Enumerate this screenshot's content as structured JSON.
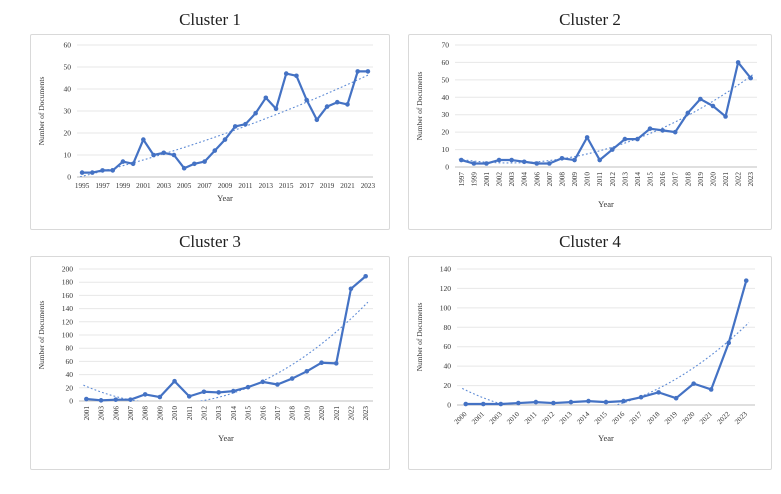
{
  "figure_title": "Cluster document trends figure",
  "colors": {
    "line": "#4472C4",
    "trend": "#5E8BD5",
    "grid": "#E7E7E7",
    "axis": "#BFBFBF",
    "text": "#333333",
    "panel_border": "#D9D9D9"
  },
  "chart_data": [
    {
      "type": "line",
      "title": "Cluster 1",
      "xlabel": "Year",
      "ylabel": "Number of Documents",
      "categories": [
        "1995",
        "1996",
        "1997",
        "1998",
        "1999",
        "2000",
        "2001",
        "2002",
        "2003",
        "2004",
        "2005",
        "2006",
        "2007",
        "2008",
        "2009",
        "2010",
        "2011",
        "2012",
        "2013",
        "2014",
        "2015",
        "2016",
        "2017",
        "2018",
        "2019",
        "2020",
        "2021",
        "2022",
        "2023"
      ],
      "values": [
        2,
        2,
        3,
        3,
        7,
        6,
        17,
        10,
        11,
        10,
        4,
        6,
        7,
        12,
        17,
        23,
        24,
        29,
        36,
        31,
        47,
        46,
        35,
        26,
        32,
        34,
        33,
        48,
        48
      ],
      "ylim": [
        0,
        60
      ],
      "ystep": 10,
      "x_tick_style": "horizontal",
      "x_tick_every": 2,
      "trend": "poly2",
      "grid": true,
      "legend": "none"
    },
    {
      "type": "line",
      "title": "Cluster 2",
      "xlabel": "Year",
      "ylabel": "Number of Documents",
      "categories": [
        "1997",
        "1999",
        "2001",
        "2002",
        "2003",
        "2004",
        "2006",
        "2007",
        "2008",
        "2009",
        "2010",
        "2011",
        "2012",
        "2013",
        "2014",
        "2015",
        "2016",
        "2017",
        "2018",
        "2019",
        "2020",
        "2021",
        "2022",
        "2023"
      ],
      "values": [
        4,
        2,
        2,
        4,
        4,
        3,
        2,
        2,
        5,
        4,
        17,
        4,
        10,
        16,
        16,
        22,
        21,
        20,
        31,
        39,
        35,
        29,
        60,
        51
      ],
      "ylim": [
        0,
        70
      ],
      "ystep": 10,
      "x_tick_style": "vertical",
      "x_tick_every": 1,
      "trend": "poly2",
      "grid": true,
      "legend": "none"
    },
    {
      "type": "line",
      "title": "Cluster 3",
      "xlabel": "Year",
      "ylabel": "Number of Documents",
      "categories": [
        "2001",
        "2003",
        "2006",
        "2007",
        "2008",
        "2009",
        "2010",
        "2011",
        "2012",
        "2013",
        "2014",
        "2015",
        "2016",
        "2017",
        "2018",
        "2019",
        "2020",
        "2021",
        "2022",
        "2023"
      ],
      "values": [
        3,
        1,
        2,
        2,
        10,
        6,
        30,
        7,
        14,
        13,
        15,
        21,
        29,
        25,
        34,
        45,
        58,
        57,
        170,
        189
      ],
      "ylim": [
        0,
        200
      ],
      "ystep": 20,
      "x_tick_style": "vertical",
      "x_tick_every": 1,
      "trend": "poly2",
      "grid": true,
      "legend": "none"
    },
    {
      "type": "line",
      "title": "Cluster 4",
      "xlabel": "Year",
      "ylabel": "Number of Documents",
      "categories": [
        "2000",
        "2001",
        "2003",
        "2010",
        "2011",
        "2012",
        "2013",
        "2014",
        "2015",
        "2016",
        "2017",
        "2018",
        "2019",
        "2020",
        "2021",
        "2022",
        "2023"
      ],
      "values": [
        1,
        1,
        1,
        2,
        3,
        2,
        3,
        4,
        3,
        4,
        8,
        13,
        7,
        22,
        16,
        64,
        128
      ],
      "ylim": [
        0,
        140
      ],
      "ystep": 20,
      "x_tick_style": "angled",
      "x_tick_every": 1,
      "trend": "poly2",
      "grid": true,
      "legend": "none"
    }
  ]
}
